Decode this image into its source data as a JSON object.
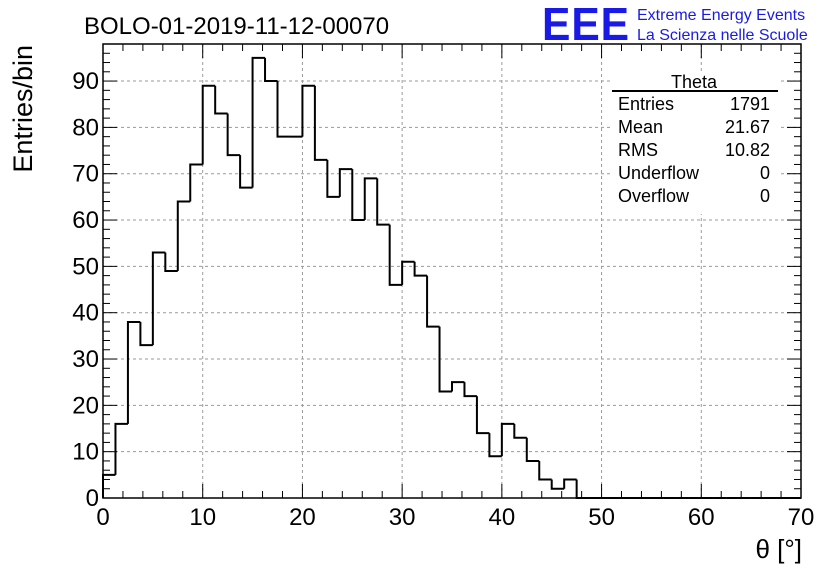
{
  "chart_data": {
    "type": "bar",
    "title": "BOLO-01-2019-11-12-00070",
    "xlabel": "θ [°]",
    "ylabel": "Entries/bin",
    "xlim": [
      0,
      70
    ],
    "ylim": [
      0,
      98
    ],
    "xticks": [
      0,
      10,
      20,
      30,
      40,
      50,
      60,
      70
    ],
    "yticks": [
      0,
      10,
      20,
      30,
      40,
      50,
      60,
      70,
      80,
      90
    ],
    "grid": true,
    "bin_width": 1.25,
    "bin_edges_start": 0,
    "values": [
      5,
      16,
      38,
      33,
      53,
      49,
      64,
      72,
      89,
      83,
      74,
      67,
      95,
      90,
      78,
      78,
      89,
      73,
      65,
      71,
      60,
      69,
      59,
      46,
      51,
      48,
      37,
      23,
      25,
      22,
      14,
      9,
      16,
      13,
      8,
      4,
      2,
      4,
      0,
      0,
      0,
      0,
      0,
      0,
      0,
      0,
      0,
      0,
      0,
      0,
      0,
      0,
      0,
      0,
      0,
      0
    ],
    "stats": {
      "name": "Theta",
      "rows": [
        {
          "label": "Entries",
          "value": "1791"
        },
        {
          "label": "Mean",
          "value": "21.67"
        },
        {
          "label": "RMS",
          "value": "10.82"
        },
        {
          "label": "Underflow",
          "value": "0"
        },
        {
          "label": "Overflow",
          "value": "0"
        }
      ]
    }
  },
  "logo": {
    "text": "EEE",
    "line1": "Extreme Energy Events",
    "line2": "La Scienza nelle Scuole",
    "color": "#1a1ae6"
  }
}
